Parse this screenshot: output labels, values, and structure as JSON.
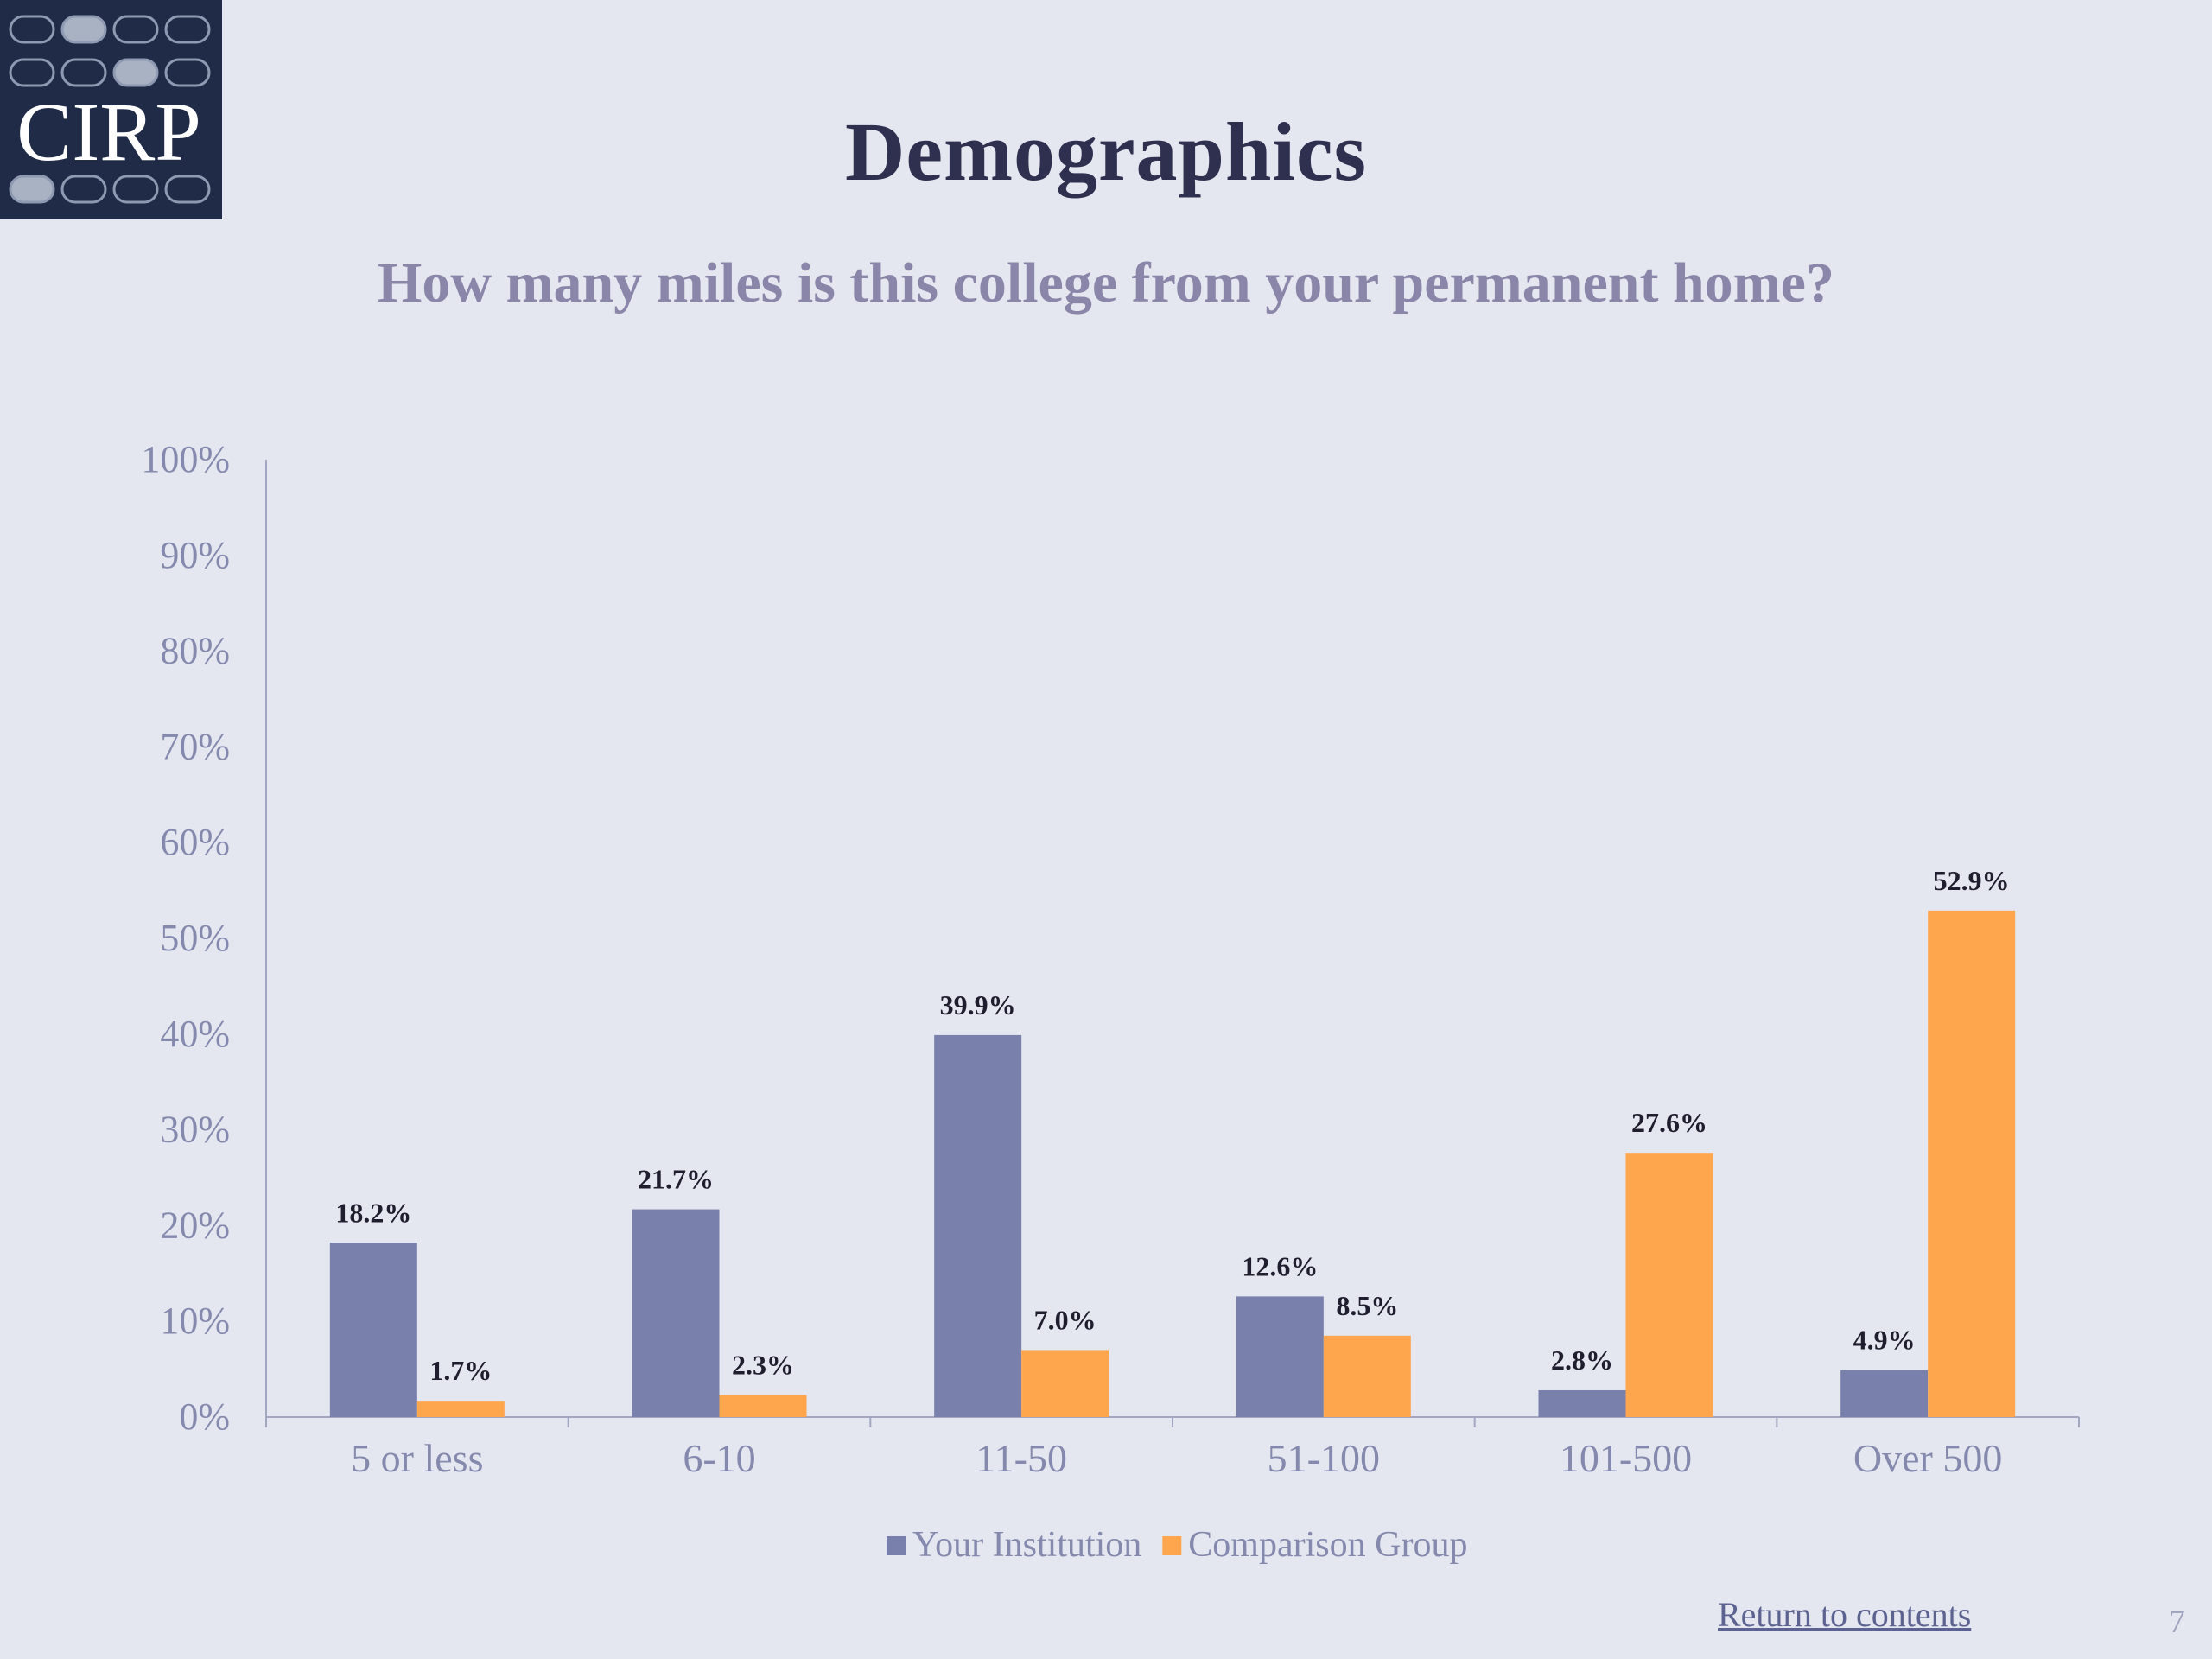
{
  "slide": {
    "logo_text": "CIRP",
    "title": "Demographics",
    "subtitle": "How many miles is this college from your permanent home?",
    "return_link": "Return to contents",
    "page_number": "7"
  },
  "colors": {
    "background": "#e4e7ef",
    "series_institution": "#7880ab",
    "series_comparison": "#fea64d",
    "axis_text": "#8589ad",
    "label_text": "#1e1e2e",
    "logo_bg": "#1f2b47"
  },
  "chart_data": {
    "type": "bar",
    "title": "",
    "xlabel": "",
    "ylabel": "",
    "ylim": [
      0,
      100
    ],
    "y_ticks": [
      "0%",
      "10%",
      "20%",
      "30%",
      "40%",
      "50%",
      "60%",
      "70%",
      "80%",
      "90%",
      "100%"
    ],
    "categories": [
      "5 or less",
      "6-10",
      "11-50",
      "51-100",
      "101-500",
      "Over 500"
    ],
    "series": [
      {
        "name": "Your Institution",
        "values": [
          18.2,
          21.7,
          39.9,
          12.6,
          2.8,
          4.9
        ],
        "labels": [
          "18.2%",
          "21.7%",
          "39.9%",
          "12.6%",
          "2.8%",
          "4.9%"
        ]
      },
      {
        "name": "Comparison Group",
        "values": [
          1.7,
          2.3,
          7.0,
          8.5,
          27.6,
          52.9
        ],
        "labels": [
          "1.7%",
          "2.3%",
          "7.0%",
          "8.5%",
          "27.6%",
          "52.9%"
        ]
      }
    ],
    "grid": false,
    "legend_position": "bottom"
  }
}
